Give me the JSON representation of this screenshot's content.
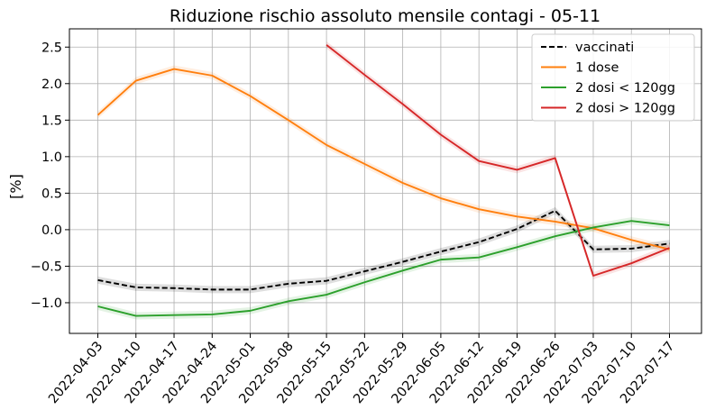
{
  "chart_data": {
    "type": "line",
    "title": "Riduzione rischio assoluto mensile contagi - 05-11",
    "xlabel": "",
    "ylabel": "[%]",
    "categories": [
      "2022-04-03",
      "2022-04-10",
      "2022-04-17",
      "2022-04-24",
      "2022-05-01",
      "2022-05-08",
      "2022-05-15",
      "2022-05-22",
      "2022-05-29",
      "2022-06-05",
      "2022-06-12",
      "2022-06-19",
      "2022-06-26",
      "2022-07-03",
      "2022-07-10",
      "2022-07-17"
    ],
    "ylim": [
      -1.42,
      2.75
    ],
    "yticks": [
      2.5,
      2.0,
      1.5,
      1.0,
      0.5,
      0.0,
      -0.5,
      -1.0
    ],
    "ytick_labels": [
      "2.5",
      "2.0",
      "1.5",
      "1.0",
      "0.5",
      "0.0",
      "−0.5",
      "−1.0"
    ],
    "grid": true,
    "legend_position": "top-right",
    "series": [
      {
        "name": "vaccinati",
        "color": "#000000",
        "dashed": true,
        "values": [
          -0.69,
          -0.79,
          -0.8,
          -0.82,
          -0.82,
          -0.74,
          -0.7,
          -0.57,
          -0.44,
          -0.3,
          -0.17,
          0.01,
          0.26,
          -0.27,
          -0.26,
          -0.19
        ]
      },
      {
        "name": "1 dose",
        "color": "#ff7f0e",
        "dashed": false,
        "values": [
          1.57,
          2.04,
          2.2,
          2.11,
          1.83,
          1.5,
          1.16,
          0.9,
          0.64,
          0.43,
          0.28,
          0.18,
          0.11,
          0.02,
          -0.14,
          -0.27
        ]
      },
      {
        "name": "2 dosi < 120gg",
        "color": "#2ca02c",
        "dashed": false,
        "values": [
          -1.05,
          -1.18,
          -1.17,
          -1.16,
          -1.11,
          -0.98,
          -0.89,
          -0.72,
          -0.56,
          -0.41,
          -0.38,
          -0.24,
          -0.09,
          0.03,
          0.12,
          0.06
        ]
      },
      {
        "name": "2 dosi > 120gg",
        "color": "#d62728",
        "dashed": false,
        "values": [
          null,
          null,
          null,
          null,
          null,
          null,
          2.53,
          2.12,
          1.72,
          1.3,
          0.94,
          0.82,
          0.98,
          -0.63,
          -0.46,
          -0.25
        ]
      }
    ]
  }
}
